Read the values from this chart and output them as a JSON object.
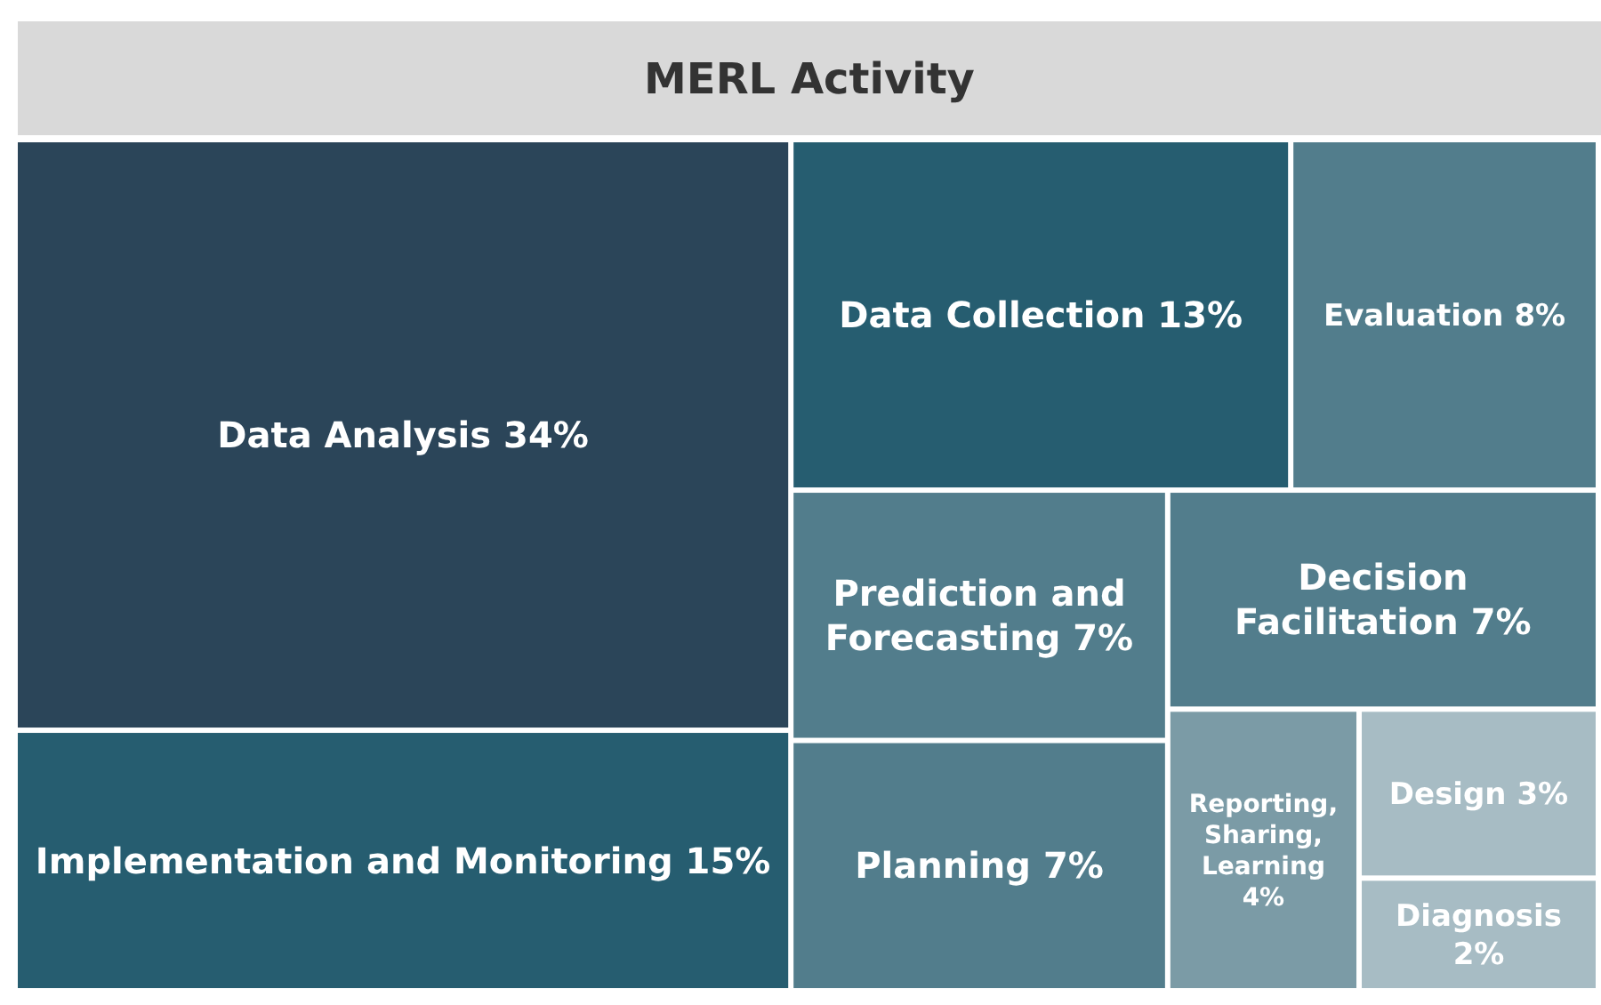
{
  "chart_data": {
    "type": "other",
    "title": "MERL Activity",
    "categories": [
      "Data Analysis",
      "Implementation and Monitoring",
      "Data Collection",
      "Evaluation",
      "Prediction and Forecasting",
      "Planning",
      "Decision Facilitation",
      "Reporting, Sharing, Learning",
      "Design",
      "Diagnosis"
    ],
    "values": [
      34,
      15,
      13,
      8,
      7,
      7,
      7,
      4,
      3,
      2
    ],
    "value_labels": [
      "34%",
      "15%",
      "13%",
      "8%",
      "7%",
      "7%",
      "7%",
      "4%",
      "3%",
      "2%"
    ],
    "colors": [
      "#2b4559",
      "#265d70",
      "#265d70",
      "#527d8c",
      "#527d8c",
      "#527d8c",
      "#527d8c",
      "#7b9ba6",
      "#a7bcc4",
      "#a7bcc4"
    ]
  }
}
